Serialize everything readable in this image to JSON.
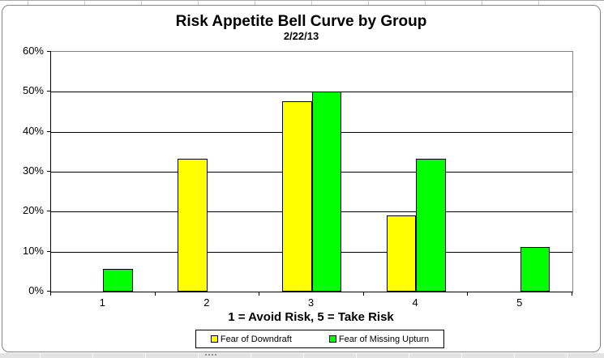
{
  "chart_data": {
    "type": "bar",
    "title": "Risk Appetite Bell Curve by Group",
    "subtitle": "2/22/13",
    "xlabel": "1 = Avoid Risk, 5 = Take Risk",
    "ylabel": "",
    "categories": [
      "1",
      "2",
      "3",
      "4",
      "5"
    ],
    "series": [
      {
        "name": "Fear of Downdraft",
        "color": "#FFFF00",
        "values": [
          0,
          33.3,
          47.6,
          19.0,
          0
        ]
      },
      {
        "name": "Fear of Missing Upturn",
        "color": "#00FF00",
        "values": [
          5.6,
          0,
          50.0,
          33.3,
          11.1
        ]
      }
    ],
    "ylim": [
      0,
      60
    ],
    "yticks": [
      "0%",
      "10%",
      "20%",
      "30%",
      "40%",
      "50%",
      "60%"
    ],
    "grid": true,
    "legend_position": "bottom",
    "bar_border_color": "#000000"
  }
}
